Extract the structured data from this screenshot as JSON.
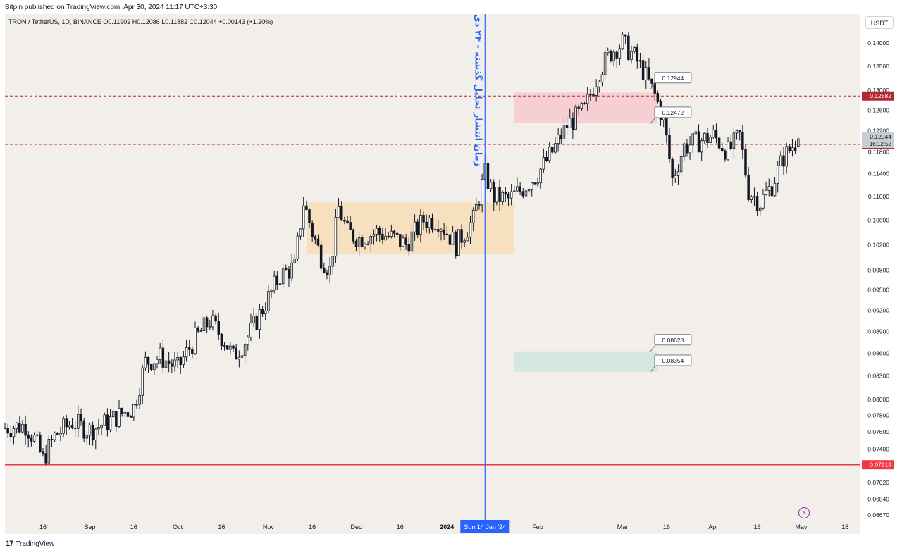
{
  "header": {
    "publish_text": "Bitpin published on TradingView.com, Apr 30, 2024 11:17 UTC+3:30"
  },
  "legend": {
    "text": "TRON / TetherUS, 1D, BINANCE  O0.11902  H0.12086  L0.11882  C0.12044  +0.00143 (+1.20%)"
  },
  "currency_button": "USDT",
  "footer": {
    "brand": "TradingView",
    "logo_glyph": "17"
  },
  "colors": {
    "background": "#f2efea",
    "candle_body": "#131722",
    "candle_hollow": "#ffffff",
    "vertical_line": "#2962ff",
    "support_line": "#f23645",
    "dashed_line": "#b22833",
    "orange_zone": "#f7ddb8",
    "red_zone": "#f8c9cf",
    "green_zone": "#cfe6dd"
  },
  "chart_data": {
    "type": "candlestick",
    "symbol": "TRON / TetherUS",
    "interval": "1D",
    "exchange": "BINANCE",
    "ohlc_last": {
      "open": 0.11902,
      "high": 0.12086,
      "low": 0.11882,
      "close": 0.12044,
      "change": "+0.00143 (+1.20%)"
    },
    "y_scale": "log",
    "ylim": [
      0.0662,
      0.1465
    ],
    "price_ticks": [
      "0.14000",
      "0.13500",
      "0.13000",
      "0.12600",
      "0.12200",
      "0.11800",
      "0.11400",
      "0.11000",
      "0.10600",
      "0.10200",
      "0.09800",
      "0.09500",
      "0.09200",
      "0.08900",
      "0.08600",
      "0.08300",
      "0.08000",
      "0.07800",
      "0.07600",
      "0.07400",
      "0.07200",
      "0.07020",
      "0.06840",
      "0.06670"
    ],
    "x_tick_labels": [
      {
        "date": "2023-08-16",
        "label": "16"
      },
      {
        "date": "2023-09-01",
        "label": "Sep"
      },
      {
        "date": "2023-09-16",
        "label": "16"
      },
      {
        "date": "2023-10-01",
        "label": "Oct"
      },
      {
        "date": "2023-10-16",
        "label": "16"
      },
      {
        "date": "2023-11-01",
        "label": "Nov"
      },
      {
        "date": "2023-11-16",
        "label": "16"
      },
      {
        "date": "2023-12-01",
        "label": "Dec"
      },
      {
        "date": "2023-12-16",
        "label": "16"
      },
      {
        "date": "2024-01-01",
        "label": "2024"
      },
      {
        "date": "2024-02-01",
        "label": "Feb"
      },
      {
        "date": "2024-03-01",
        "label": "Mar"
      },
      {
        "date": "2024-03-16",
        "label": "16"
      },
      {
        "date": "2024-04-01",
        "label": "Apr"
      },
      {
        "date": "2024-04-16",
        "label": "16"
      },
      {
        "date": "2024-05-01",
        "label": "May"
      },
      {
        "date": "2024-05-16",
        "label": "16"
      }
    ],
    "x_range": [
      "2023-08-03",
      "2024-05-21"
    ],
    "close_path": [
      [
        "2023-08-03",
        0.0765
      ],
      [
        "2023-08-10",
        0.0768
      ],
      [
        "2023-08-13",
        0.0752
      ],
      [
        "2023-08-16",
        0.0728
      ],
      [
        "2023-08-20",
        0.0755
      ],
      [
        "2023-08-26",
        0.0772
      ],
      [
        "2023-09-01",
        0.0762
      ],
      [
        "2023-09-06",
        0.077
      ],
      [
        "2023-09-12",
        0.0782
      ],
      [
        "2023-09-16",
        0.079
      ],
      [
        "2023-09-20",
        0.0848
      ],
      [
        "2023-09-25",
        0.0855
      ],
      [
        "2023-10-01",
        0.084
      ],
      [
        "2023-10-07",
        0.088
      ],
      [
        "2023-10-12",
        0.0905
      ],
      [
        "2023-10-17",
        0.0878
      ],
      [
        "2023-10-20",
        0.0855
      ],
      [
        "2023-10-25",
        0.0882
      ],
      [
        "2023-10-31",
        0.093
      ],
      [
        "2023-11-05",
        0.0972
      ],
      [
        "2023-11-10",
        0.0985
      ],
      [
        "2023-11-13",
        0.109
      ],
      [
        "2023-11-16",
        0.104
      ],
      [
        "2023-11-19",
        0.1
      ],
      [
        "2023-11-22",
        0.098
      ],
      [
        "2023-11-25",
        0.108
      ],
      [
        "2023-11-28",
        0.104
      ],
      [
        "2023-12-02",
        0.103
      ],
      [
        "2023-12-08",
        0.104
      ],
      [
        "2023-12-14",
        0.103
      ],
      [
        "2023-12-18",
        0.102
      ],
      [
        "2023-12-24",
        0.106
      ],
      [
        "2023-12-29",
        0.106
      ],
      [
        "2024-01-04",
        0.102
      ],
      [
        "2024-01-10",
        0.106
      ],
      [
        "2024-01-14",
        0.114
      ],
      [
        "2024-01-17",
        0.11
      ],
      [
        "2024-01-22",
        0.1095
      ],
      [
        "2024-01-26",
        0.111
      ],
      [
        "2024-02-01",
        0.114
      ],
      [
        "2024-02-06",
        0.118
      ],
      [
        "2024-02-11",
        0.123
      ],
      [
        "2024-02-17",
        0.126
      ],
      [
        "2024-02-22",
        0.134
      ],
      [
        "2024-02-26",
        0.138
      ],
      [
        "2024-03-01",
        0.14
      ],
      [
        "2024-03-05",
        0.137
      ],
      [
        "2024-03-08",
        0.134
      ],
      [
        "2024-03-12",
        0.129
      ],
      [
        "2024-03-15",
        0.124
      ],
      [
        "2024-03-18",
        0.113
      ],
      [
        "2024-03-22",
        0.119
      ],
      [
        "2024-03-27",
        0.12
      ],
      [
        "2024-04-01",
        0.121
      ],
      [
        "2024-04-06",
        0.118
      ],
      [
        "2024-04-10",
        0.121
      ],
      [
        "2024-04-13",
        0.111
      ],
      [
        "2024-04-17",
        0.109
      ],
      [
        "2024-04-21",
        0.112
      ],
      [
        "2024-04-25",
        0.117
      ],
      [
        "2024-04-30",
        0.12044
      ]
    ],
    "zones": [
      {
        "from": "2023-11-14",
        "to": "2024-01-24",
        "top": 0.109,
        "bottom": 0.1005,
        "color": "orange"
      },
      {
        "from": "2024-01-24",
        "to": "2024-03-13",
        "top": 0.1295,
        "bottom": 0.1235,
        "color": "red"
      },
      {
        "from": "2024-01-24",
        "to": "2024-03-13",
        "top": 0.08628,
        "bottom": 0.08354,
        "color": "green"
      }
    ],
    "horizontal_lines": [
      {
        "price": 0.12882,
        "label": "0.12882",
        "style": "dashed"
      },
      {
        "price": 0.11938,
        "label": "0.11938",
        "style": "dashed"
      },
      {
        "price": 0.07219,
        "label": "0.07219",
        "style": "solid"
      }
    ],
    "price_callouts": [
      {
        "label": "0.12944",
        "date": "2024-03-10",
        "price": 0.1325
      },
      {
        "label": "0.12472",
        "date": "2024-03-10",
        "price": 0.1255
      },
      {
        "label": "0.08628",
        "date": "2024-03-10",
        "price": 0.0878
      },
      {
        "label": "0.08354",
        "date": "2024-03-10",
        "price": 0.085
      }
    ],
    "last_price": {
      "value": "0.12044",
      "countdown": "16:12:52"
    },
    "vertical_marker": {
      "date": "2024-01-14",
      "label": "Sun 14 Jan '24",
      "annotation": "زمان انتشار تحلیل گذشته - ۲۴ دی"
    }
  }
}
